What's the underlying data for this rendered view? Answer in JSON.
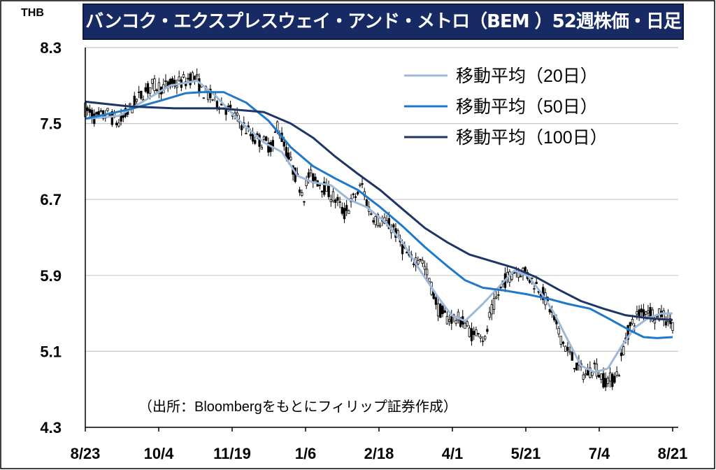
{
  "title": "バンコク・エクスプレスウェイ・アンド・メトロ（BEM ）52週株価・日足",
  "unit": "THB",
  "source": "（出所：Bloombergをもとにフィリップ証券作成）",
  "colors": {
    "title_bg": "#182a63",
    "ma20": "#9db8d9",
    "ma50": "#1f78c8",
    "ma100": "#1e3566",
    "candle": "#000000",
    "grid": "#c8c8c8"
  },
  "chart_data": {
    "type": "candlestick",
    "title": "バンコク・エクスプレスウェイ・アンド・メトロ（BEM ）52週株価・日足",
    "ylabel": "THB",
    "ylim": [
      4.3,
      8.3
    ],
    "y_ticks": [
      "8.3",
      "7.5",
      "6.7",
      "5.9",
      "5.1",
      "4.3"
    ],
    "x_ticks": [
      "8/23",
      "10/4",
      "11/19",
      "1/6",
      "2/18",
      "4/1",
      "5/21",
      "7/4",
      "8/21"
    ],
    "grid": true,
    "legend_position": "top-right",
    "legend": [
      "移動平均（20日）",
      "移動平均（50日）",
      "移動平均（100日）"
    ],
    "price_path": [
      [
        0,
        7.65
      ],
      [
        5,
        7.55
      ],
      [
        10,
        7.6
      ],
      [
        15,
        7.5
      ],
      [
        20,
        7.65
      ],
      [
        25,
        7.8
      ],
      [
        30,
        7.9
      ],
      [
        35,
        7.88
      ],
      [
        40,
        7.92
      ],
      [
        45,
        7.95
      ],
      [
        48,
        8.0
      ],
      [
        50,
        7.95
      ],
      [
        52,
        7.85
      ],
      [
        55,
        7.8
      ],
      [
        58,
        7.75
      ],
      [
        62,
        7.68
      ],
      [
        66,
        7.6
      ],
      [
        70,
        7.5
      ],
      [
        75,
        7.35
      ],
      [
        80,
        7.3
      ],
      [
        84,
        7.25
      ],
      [
        86,
        7.5
      ],
      [
        90,
        7.2
      ],
      [
        95,
        6.9
      ],
      [
        98,
        6.75
      ],
      [
        100,
        6.95
      ],
      [
        104,
        6.9
      ],
      [
        108,
        6.8
      ],
      [
        112,
        6.7
      ],
      [
        116,
        6.55
      ],
      [
        120,
        6.7
      ],
      [
        124,
        6.85
      ],
      [
        127,
        6.6
      ],
      [
        130,
        6.5
      ],
      [
        134,
        6.45
      ],
      [
        138,
        6.4
      ],
      [
        142,
        6.2
      ],
      [
        146,
        6.05
      ],
      [
        150,
        6.1
      ],
      [
        154,
        5.85
      ],
      [
        158,
        5.55
      ],
      [
        162,
        5.45
      ],
      [
        166,
        5.45
      ],
      [
        170,
        5.4
      ],
      [
        174,
        5.25
      ],
      [
        176,
        5.35
      ],
      [
        179,
        5.2
      ],
      [
        181,
        5.45
      ],
      [
        184,
        5.65
      ],
      [
        188,
        5.85
      ],
      [
        192,
        5.95
      ],
      [
        196,
        5.95
      ],
      [
        200,
        5.85
      ],
      [
        204,
        5.75
      ],
      [
        208,
        5.55
      ],
      [
        212,
        5.3
      ],
      [
        216,
        5.1
      ],
      [
        220,
        4.95
      ],
      [
        224,
        4.85
      ],
      [
        228,
        4.95
      ],
      [
        232,
        4.8
      ],
      [
        236,
        4.8
      ],
      [
        239,
        4.9
      ],
      [
        242,
        5.25
      ],
      [
        245,
        5.4
      ],
      [
        248,
        5.5
      ],
      [
        252,
        5.55
      ],
      [
        256,
        5.45
      ],
      [
        258,
        5.5
      ],
      [
        260,
        5.45
      ],
      [
        263,
        5.4
      ]
    ],
    "series": [
      {
        "name": "移動平均（20日）",
        "color": "#9db8d9",
        "points": [
          [
            0,
            7.55
          ],
          [
            15,
            7.58
          ],
          [
            25,
            7.72
          ],
          [
            38,
            7.9
          ],
          [
            50,
            7.95
          ],
          [
            58,
            7.8
          ],
          [
            68,
            7.55
          ],
          [
            80,
            7.3
          ],
          [
            88,
            7.2
          ],
          [
            95,
            6.95
          ],
          [
            102,
            6.88
          ],
          [
            110,
            6.85
          ],
          [
            118,
            6.7
          ],
          [
            126,
            6.62
          ],
          [
            134,
            6.47
          ],
          [
            142,
            6.25
          ],
          [
            150,
            5.95
          ],
          [
            158,
            5.67
          ],
          [
            164,
            5.48
          ],
          [
            170,
            5.42
          ],
          [
            178,
            5.6
          ],
          [
            186,
            5.8
          ],
          [
            192,
            5.95
          ],
          [
            198,
            5.9
          ],
          [
            204,
            5.72
          ],
          [
            210,
            5.5
          ],
          [
            216,
            5.22
          ],
          [
            222,
            4.95
          ],
          [
            228,
            4.88
          ],
          [
            234,
            4.92
          ],
          [
            240,
            5.15
          ],
          [
            246,
            5.35
          ],
          [
            252,
            5.45
          ],
          [
            258,
            5.5
          ],
          [
            263,
            5.5
          ]
        ]
      },
      {
        "name": "移動平均（50日）",
        "color": "#1f78c8",
        "points": [
          [
            0,
            7.55
          ],
          [
            20,
            7.65
          ],
          [
            35,
            7.75
          ],
          [
            45,
            7.82
          ],
          [
            52,
            7.83
          ],
          [
            62,
            7.83
          ],
          [
            72,
            7.72
          ],
          [
            82,
            7.53
          ],
          [
            92,
            7.25
          ],
          [
            102,
            7.05
          ],
          [
            112,
            6.92
          ],
          [
            122,
            6.8
          ],
          [
            132,
            6.62
          ],
          [
            142,
            6.42
          ],
          [
            152,
            6.2
          ],
          [
            162,
            6.0
          ],
          [
            170,
            5.85
          ],
          [
            178,
            5.77
          ],
          [
            188,
            5.74
          ],
          [
            198,
            5.7
          ],
          [
            208,
            5.65
          ],
          [
            216,
            5.6
          ],
          [
            226,
            5.55
          ],
          [
            234,
            5.45
          ],
          [
            244,
            5.32
          ],
          [
            250,
            5.25
          ],
          [
            256,
            5.24
          ],
          [
            263,
            5.25
          ]
        ]
      },
      {
        "name": "移動平均（100日）",
        "color": "#1e3566",
        "points": [
          [
            0,
            7.73
          ],
          [
            20,
            7.68
          ],
          [
            40,
            7.66
          ],
          [
            60,
            7.66
          ],
          [
            80,
            7.62
          ],
          [
            92,
            7.5
          ],
          [
            102,
            7.35
          ],
          [
            112,
            7.15
          ],
          [
            122,
            6.97
          ],
          [
            132,
            6.8
          ],
          [
            142,
            6.6
          ],
          [
            152,
            6.4
          ],
          [
            162,
            6.25
          ],
          [
            172,
            6.12
          ],
          [
            182,
            6.05
          ],
          [
            192,
            5.98
          ],
          [
            202,
            5.88
          ],
          [
            212,
            5.75
          ],
          [
            222,
            5.63
          ],
          [
            232,
            5.55
          ],
          [
            242,
            5.48
          ],
          [
            252,
            5.45
          ],
          [
            263,
            5.43
          ]
        ]
      }
    ]
  }
}
